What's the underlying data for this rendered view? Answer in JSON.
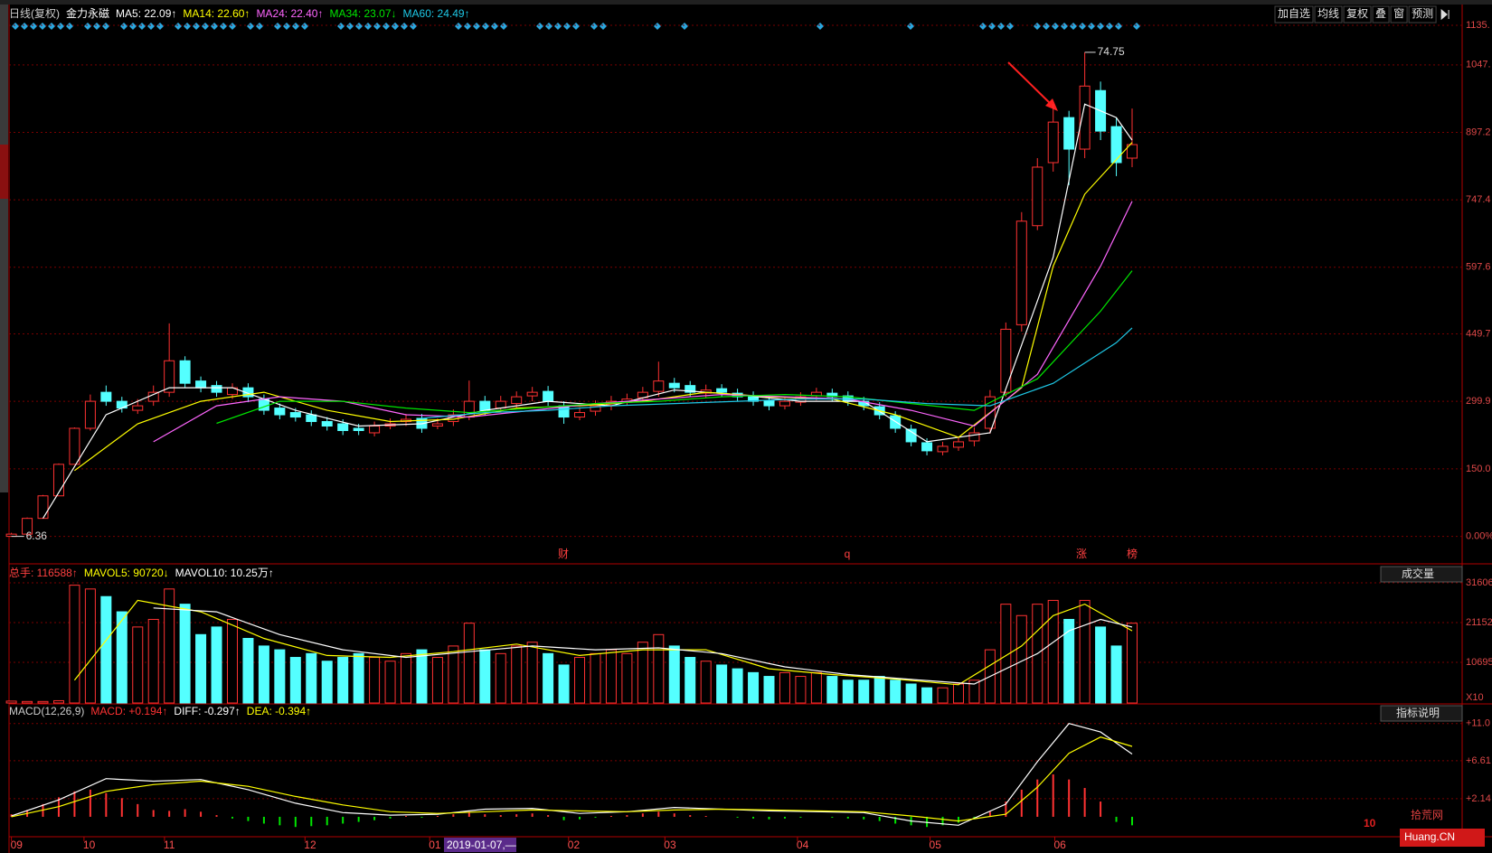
{
  "header": {
    "period": "日线(复权)",
    "stock": "金力永磁"
  },
  "toolbar": [
    "加自选",
    "均线",
    "复权",
    "叠",
    "窗",
    "预测"
  ],
  "watermark": {
    "logo": "10",
    "site": "拾荒网",
    "domain": "Huang.CN"
  },
  "chart_data": [
    {
      "type": "candlestick",
      "up_color": "#ff3232",
      "down_color": "#54ffff",
      "ylim": [
        -59,
        1145
      ],
      "yticks": [
        {
          "value": 1135,
          "label": "1135."
        },
        {
          "value": 1047,
          "label": "1047."
        },
        897.2,
        747.4,
        597.6,
        449.7,
        299.9,
        {
          "value": 150,
          "label": "150.0"
        },
        {
          "value": 0,
          "label": "0.00%"
        }
      ],
      "grid": true,
      "annotations": [
        "74.75",
        "6.36"
      ],
      "markers": [
        "财",
        "q",
        "涨",
        "榜"
      ],
      "open": [
        0,
        5,
        40,
        90,
        160,
        240,
        320,
        300,
        280,
        300,
        320,
        390,
        345,
        335,
        315,
        330,
        305,
        285,
        275,
        270,
        255,
        250,
        240,
        230,
        245,
        255,
        262,
        245,
        255,
        265,
        300,
        285,
        295,
        312,
        322,
        290,
        265,
        278,
        292,
        298,
        308,
        322,
        340,
        335,
        318,
        328,
        318,
        312,
        302,
        290,
        298,
        312,
        318,
        312,
        300,
        288,
        268,
        238,
        208,
        188,
        198,
        212,
        240,
        320,
        470,
        690,
        830,
        930,
        860,
        990,
        910,
        840
      ],
      "close": [
        5,
        40,
        90,
        160,
        240,
        300,
        300,
        285,
        290,
        320,
        390,
        340,
        330,
        320,
        330,
        310,
        280,
        270,
        265,
        255,
        245,
        235,
        235,
        245,
        250,
        260,
        240,
        250,
        270,
        300,
        280,
        300,
        310,
        320,
        300,
        265,
        275,
        290,
        300,
        305,
        320,
        345,
        330,
        320,
        325,
        320,
        310,
        300,
        290,
        300,
        310,
        320,
        310,
        300,
        290,
        270,
        240,
        210,
        190,
        200,
        210,
        230,
        310,
        460,
        700,
        820,
        920,
        860,
        1000,
        900,
        830,
        870
      ],
      "high": [
        8,
        42,
        92,
        162,
        242,
        315,
        335,
        310,
        305,
        335,
        473,
        400,
        355,
        345,
        340,
        340,
        315,
        295,
        285,
        280,
        265,
        260,
        250,
        255,
        262,
        272,
        272,
        262,
        282,
        346,
        312,
        312,
        322,
        332,
        334,
        300,
        287,
        302,
        312,
        317,
        332,
        388,
        352,
        345,
        337,
        338,
        328,
        322,
        312,
        310,
        320,
        330,
        328,
        322,
        310,
        298,
        278,
        248,
        218,
        210,
        222,
        242,
        325,
        475,
        720,
        840,
        960,
        945,
        1075,
        1010,
        930,
        950
      ],
      "low": [
        0,
        5,
        40,
        90,
        160,
        235,
        290,
        275,
        272,
        290,
        310,
        330,
        320,
        310,
        305,
        298,
        270,
        260,
        255,
        245,
        235,
        225,
        225,
        222,
        238,
        245,
        230,
        238,
        245,
        258,
        270,
        275,
        285,
        300,
        290,
        250,
        258,
        268,
        280,
        290,
        298,
        310,
        320,
        310,
        308,
        310,
        300,
        290,
        280,
        282,
        290,
        302,
        300,
        290,
        280,
        260,
        230,
        200,
        180,
        180,
        190,
        200,
        228,
        310,
        455,
        680,
        810,
        780,
        840,
        880,
        800,
        820
      ],
      "series": [
        {
          "name": "MA5: 22.09↑",
          "color": "#ffffff",
          "x": [
            2,
            6,
            10,
            14,
            18,
            22,
            26,
            30,
            34,
            38,
            42,
            46,
            50,
            54,
            58,
            62,
            66,
            68,
            70,
            71
          ],
          "values": [
            40,
            270,
            330,
            330,
            280,
            245,
            250,
            280,
            300,
            290,
            325,
            315,
            300,
            300,
            210,
            230,
            620,
            960,
            930,
            880
          ]
        },
        {
          "name": "MA14: 22.60↑",
          "color": "#ffff00",
          "x": [
            4,
            8,
            12,
            16,
            20,
            24,
            28,
            32,
            36,
            40,
            44,
            48,
            52,
            56,
            60,
            64,
            66,
            68,
            71
          ],
          "values": [
            146,
            250,
            300,
            320,
            280,
            255,
            260,
            285,
            290,
            300,
            320,
            310,
            305,
            270,
            220,
            330,
            600,
            760,
            875
          ]
        },
        {
          "name": "MA24: 22.40↑",
          "color": "#ff66ff",
          "x": [
            9,
            13,
            17,
            21,
            25,
            29,
            33,
            37,
            41,
            45,
            49,
            53,
            57,
            61,
            65,
            69,
            71
          ],
          "values": [
            210,
            290,
            310,
            300,
            270,
            265,
            280,
            295,
            305,
            315,
            310,
            305,
            280,
            245,
            360,
            600,
            744
          ]
        },
        {
          "name": "MA34: 23.07↓",
          "color": "#00e600",
          "x": [
            13,
            17,
            21,
            25,
            29,
            33,
            37,
            41,
            45,
            49,
            53,
            57,
            61,
            65,
            69,
            71
          ],
          "values": [
            251,
            300,
            300,
            285,
            275,
            285,
            295,
            300,
            310,
            315,
            310,
            295,
            280,
            350,
            500,
            590
          ]
        },
        {
          "name": "MA60: 24.49↑",
          "color": "#1ec8e6",
          "x": [
            26,
            30,
            34,
            38,
            42,
            46,
            50,
            54,
            58,
            62,
            66,
            70,
            71
          ],
          "values": [
            262,
            275,
            280,
            290,
            295,
            300,
            305,
            305,
            295,
            290,
            340,
            430,
            463
          ]
        }
      ]
    },
    {
      "type": "bar",
      "ylim": [
        0,
        35900
      ],
      "yticks": [
        31606,
        21152,
        10695
      ],
      "grid": true,
      "axis_unit": "X10",
      "selector": "成交量",
      "series": [
        {
          "name": "总手: 116588↑",
          "color": "#ff4040",
          "values": [
            500,
            400,
            400,
            600,
            31000,
            30000,
            28000,
            24000,
            20000,
            22000,
            30000,
            26000,
            18000,
            20000,
            22000,
            17000,
            15000,
            14000,
            12000,
            13000,
            11000,
            12000,
            13000,
            12000,
            11000,
            13000,
            14000,
            12000,
            15000,
            21000,
            14000,
            13000,
            15000,
            16000,
            13000,
            10000,
            12000,
            13000,
            14000,
            13000,
            16000,
            18000,
            15000,
            12000,
            11000,
            10000,
            9000,
            8000,
            7000,
            8000,
            7000,
            8000,
            7000,
            6000,
            6000,
            7000,
            6000,
            5000,
            4000,
            4000,
            5000,
            6000,
            14000,
            26000,
            23000,
            26000,
            27000,
            22000,
            27000,
            20000,
            15000,
            21000
          ]
        },
        {
          "name": "MAVOL5: 90720↓",
          "type": "line",
          "color": "#ffff00",
          "x": [
            4,
            8,
            12,
            16,
            20,
            24,
            28,
            32,
            36,
            40,
            44,
            48,
            52,
            56,
            60,
            64,
            66,
            68,
            71
          ],
          "values": [
            6000,
            27000,
            24000,
            17000,
            12500,
            12000,
            13500,
            15500,
            12500,
            14000,
            14000,
            9000,
            7500,
            6300,
            4800,
            15000,
            23000,
            26000,
            19000
          ]
        },
        {
          "name": "MAVOL10: 10.25万↑",
          "type": "line",
          "color": "#ffffff",
          "x": [
            9,
            13,
            17,
            21,
            25,
            29,
            33,
            37,
            41,
            45,
            49,
            53,
            57,
            61,
            65,
            67,
            69,
            71
          ],
          "values": [
            25000,
            24000,
            18000,
            14000,
            12000,
            13500,
            15000,
            14000,
            14500,
            13000,
            9500,
            7500,
            6200,
            5000,
            13000,
            19000,
            22000,
            20000
          ]
        }
      ]
    },
    {
      "type": "bar",
      "title": "MACD(12,26,9)",
      "ylim": [
        -2.35,
        13.1
      ],
      "yticks": [
        {
          "value": 11.0,
          "label": "+11.0"
        },
        {
          "value": 6.61,
          "label": "+6.61"
        },
        {
          "value": 2.14,
          "label": "+2.14"
        }
      ],
      "grid": true,
      "selector": "指标说明",
      "cursor_label": "2019-01-07,—",
      "xticks": [
        {
          "value": 0,
          "label": "09"
        },
        {
          "value": 4.6,
          "label": "10"
        },
        {
          "value": 9.7,
          "label": "11"
        },
        {
          "value": 18.6,
          "label": "12"
        },
        {
          "value": 26.5,
          "label": "01"
        },
        {
          "value": 35.3,
          "label": "02"
        },
        {
          "value": 41.4,
          "label": "03"
        },
        {
          "value": 49.8,
          "label": "04"
        },
        {
          "value": 58.2,
          "label": "05"
        },
        {
          "value": 66.1,
          "label": "06"
        }
      ],
      "series": [
        {
          "name": "MACD: +0.194↑",
          "color": "#ff3232",
          "negative_color": "#00e600",
          "values": [
            0.3,
            0.8,
            1.5,
            2.3,
            3.0,
            3.2,
            2.8,
            2.2,
            1.5,
            0.8,
            0.7,
            0.9,
            0.6,
            0.2,
            -0.2,
            -0.5,
            -0.8,
            -1.0,
            -1.2,
            -1.1,
            -1.0,
            -0.8,
            -0.6,
            -0.4,
            -0.2,
            0.1,
            -0.1,
            0.1,
            0.3,
            0.6,
            0.3,
            0.2,
            0.3,
            0.4,
            0.2,
            -0.4,
            -0.3,
            -0.1,
            0.1,
            0.2,
            0.4,
            0.6,
            0.4,
            0.2,
            0.1,
            0.0,
            -0.1,
            -0.2,
            -0.3,
            -0.2,
            -0.1,
            0.0,
            -0.1,
            -0.2,
            -0.3,
            -0.5,
            -0.8,
            -1.0,
            -1.2,
            -1.0,
            -0.7,
            -0.3,
            0.6,
            1.8,
            3.2,
            4.4,
            5.0,
            4.4,
            3.4,
            1.8,
            -0.6,
            -1.0
          ]
        },
        {
          "name": "DIFF: -0.297↑",
          "type": "line",
          "color": "#ffffff",
          "x": [
            0,
            3,
            6,
            9,
            12,
            15,
            18,
            21,
            24,
            27,
            30,
            33,
            36,
            39,
            42,
            45,
            48,
            51,
            54,
            57,
            60,
            63,
            65,
            67,
            69,
            71
          ],
          "values": [
            0.1,
            2.0,
            4.5,
            4.2,
            4.4,
            3.2,
            1.6,
            0.5,
            0.2,
            0.3,
            0.9,
            1.0,
            0.4,
            0.6,
            1.1,
            0.9,
            0.7,
            0.6,
            0.5,
            -0.5,
            -1.0,
            1.5,
            6.5,
            11.0,
            10.0,
            7.4
          ]
        },
        {
          "name": "DEA: -0.394↑",
          "type": "line",
          "color": "#ffff00",
          "x": [
            0,
            3,
            6,
            9,
            12,
            15,
            18,
            21,
            24,
            27,
            30,
            33,
            36,
            39,
            42,
            45,
            48,
            51,
            54,
            57,
            60,
            63,
            65,
            67,
            69,
            71
          ],
          "values": [
            0.0,
            1.2,
            3.0,
            3.8,
            4.2,
            3.6,
            2.4,
            1.4,
            0.6,
            0.4,
            0.6,
            0.8,
            0.7,
            0.6,
            0.8,
            0.9,
            0.8,
            0.7,
            0.6,
            0.1,
            -0.5,
            0.3,
            3.5,
            7.5,
            9.4,
            8.3
          ]
        }
      ]
    }
  ]
}
